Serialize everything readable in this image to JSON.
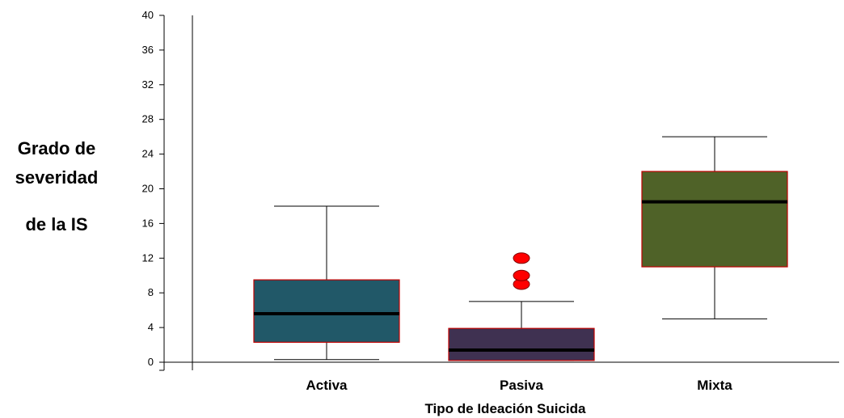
{
  "chart_data": {
    "type": "boxplot",
    "xlabel": "Tipo de Ideación Suicida",
    "ylabel_lines": [
      "Grado de",
      "severidad",
      "de la IS"
    ],
    "ylim": [
      0,
      40
    ],
    "yticks": [
      0,
      4,
      8,
      12,
      16,
      20,
      24,
      28,
      32,
      36,
      40
    ],
    "grid": false,
    "categories": [
      "Activa",
      "Pasiva",
      "Mixta"
    ],
    "boxes": [
      {
        "category": "Activa",
        "min": 0.3,
        "q1": 2.3,
        "median": 5.6,
        "q3": 9.5,
        "max": 18,
        "outliers": [],
        "color": "#215868"
      },
      {
        "category": "Pasiva",
        "min": 0.2,
        "q1": 0.2,
        "median": 1.4,
        "q3": 3.9,
        "max": 7,
        "outliers": [
          9,
          10,
          12
        ],
        "color": "#3f3151"
      },
      {
        "category": "Mixta",
        "min": 5,
        "q1": 11,
        "median": 18.5,
        "q3": 22,
        "max": 26,
        "outliers": [],
        "color": "#4f6228"
      }
    ],
    "outlier_color": "#ff0000",
    "box_border_color": "#c00000"
  }
}
